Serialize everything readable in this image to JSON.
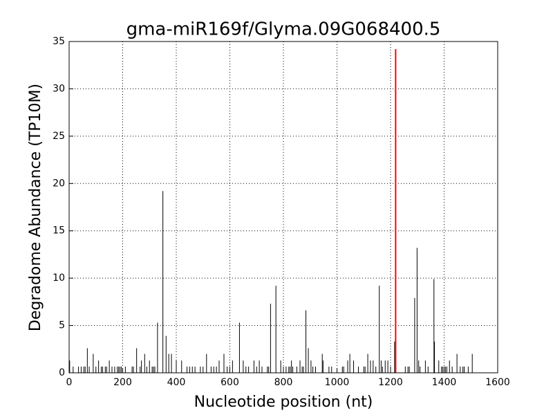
{
  "chart_data": {
    "type": "stem",
    "title": "gma-miR169f/Glyma.09G068400.5",
    "x_label": "Nucleotide position (nt)",
    "y_label": "Degradome Abundance (TP10M)",
    "xlim": [
      0,
      1600
    ],
    "xticks": [
      0,
      200,
      400,
      600,
      800,
      1000,
      1200,
      1400,
      1600
    ],
    "ylim": [
      0,
      35
    ],
    "yticks": [
      0,
      5,
      10,
      15,
      20,
      25,
      30,
      35
    ],
    "grid": true,
    "series": [
      {
        "color": "#000000",
        "x": [
          2,
          68,
          90,
          110,
          150,
          252,
          270,
          282,
          300,
          330,
          350,
          362,
          372,
          382,
          400,
          420,
          513,
          560,
          578,
          610,
          636,
          650,
          690,
          710,
          752,
          772,
          790,
          830,
          862,
          884,
          893,
          903,
          945,
          948,
          1040,
          1048,
          1062,
          1115,
          1125,
          1135,
          1158,
          1165,
          1180,
          1190,
          1215,
          1290,
          1299,
          1305,
          1330,
          1362,
          1364,
          1380,
          1420,
          1448,
          1505,
          15,
          35,
          45,
          55,
          60,
          75,
          100,
          120,
          125,
          135,
          140,
          160,
          170,
          180,
          185,
          190,
          195,
          210,
          235,
          240,
          265,
          290,
          310,
          315,
          320,
          440,
          450,
          460,
          470,
          490,
          500,
          530,
          540,
          550,
          590,
          600,
          660,
          670,
          700,
          720,
          740,
          745,
          800,
          810,
          820,
          825,
          835,
          850,
          870,
          875,
          910,
          920,
          970,
          980,
          1020,
          1025,
          1080,
          1100,
          1105,
          1145,
          1170,
          1200,
          1255,
          1265,
          1270,
          1310,
          1340,
          1390,
          1395,
          1400,
          1405,
          1410,
          1430,
          1460,
          1470,
          1475,
          1490
        ],
        "values": [
          1.3,
          2.6,
          2.0,
          1.3,
          1.3,
          2.6,
          1.3,
          2.0,
          1.3,
          5.3,
          19.2,
          3.9,
          2.0,
          2.0,
          1.3,
          1.3,
          2.0,
          1.3,
          2.0,
          1.3,
          5.3,
          1.3,
          1.3,
          1.3,
          7.3,
          9.2,
          1.3,
          1.3,
          1.3,
          6.6,
          2.6,
          1.3,
          2.0,
          1.3,
          1.3,
          2.0,
          1.3,
          2.0,
          1.3,
          1.3,
          9.2,
          1.3,
          1.3,
          1.3,
          3.3,
          7.9,
          13.2,
          1.3,
          1.3,
          9.9,
          3.3,
          1.3,
          1.3,
          2.0,
          2.0,
          0.66,
          0.66,
          0.66,
          0.66,
          0.66,
          0.66,
          0.66,
          0.66,
          0.66,
          0.66,
          0.66,
          0.66,
          0.66,
          0.66,
          0.66,
          0.66,
          0.66,
          0.66,
          0.66,
          0.66,
          0.66,
          0.66,
          0.66,
          0.66,
          0.66,
          0.66,
          0.66,
          0.66,
          0.66,
          0.66,
          0.66,
          0.66,
          0.66,
          0.66,
          0.66,
          0.66,
          0.66,
          0.66,
          0.66,
          0.66,
          0.66,
          0.66,
          0.66,
          0.66,
          0.66,
          0.66,
          0.66,
          0.66,
          0.66,
          0.66,
          0.66,
          0.66,
          0.66,
          0.66,
          0.66,
          0.66,
          0.66,
          0.66,
          0.66,
          0.66,
          0.66,
          0.66,
          0.66,
          0.66,
          0.66,
          0.66,
          0.66,
          0.66,
          0.66,
          0.66,
          0.66,
          0.66,
          0.66,
          0.66,
          0.66,
          0.66,
          0.66
        ]
      },
      {
        "color": "#ff0000",
        "x": [
          1219
        ],
        "values": [
          34.2
        ]
      }
    ]
  }
}
